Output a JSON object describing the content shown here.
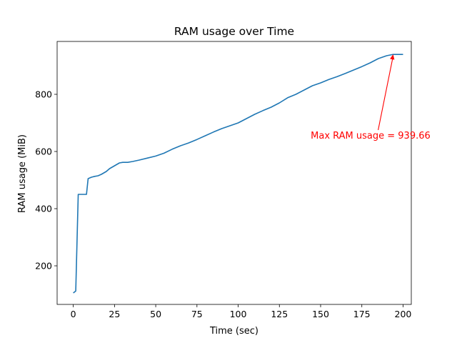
{
  "chart_data": {
    "type": "line",
    "title": "RAM usage over Time",
    "xlabel": "Time (sec)",
    "ylabel": "RAM usage (MiB)",
    "xlim": [
      -9.8,
      205
    ],
    "ylim": [
      65,
      985
    ],
    "xticks": [
      0,
      25,
      50,
      75,
      100,
      125,
      150,
      175,
      200
    ],
    "yticks": [
      200,
      400,
      600,
      800
    ],
    "grid": false,
    "series": [
      {
        "color": "#1f77b4",
        "x": [
          0,
          1.5,
          3,
          5,
          7,
          8,
          9,
          11,
          13,
          15,
          17,
          20,
          22,
          25,
          28,
          30,
          33,
          36,
          40,
          45,
          50,
          55,
          60,
          65,
          70,
          75,
          80,
          85,
          90,
          95,
          100,
          105,
          110,
          115,
          120,
          125,
          130,
          135,
          140,
          145,
          150,
          155,
          160,
          165,
          170,
          175,
          180,
          185,
          190,
          194,
          197,
          200
        ],
        "y": [
          105,
          112,
          450,
          450,
          450,
          450,
          505,
          510,
          513,
          515,
          520,
          530,
          540,
          550,
          560,
          562,
          562,
          565,
          570,
          577,
          584,
          594,
          608,
          620,
          630,
          642,
          655,
          668,
          680,
          690,
          700,
          715,
          730,
          743,
          755,
          770,
          788,
          800,
          815,
          830,
          840,
          852,
          862,
          873,
          885,
          897,
          910,
          925,
          935,
          939.66,
          939.66,
          939.66
        ]
      }
    ],
    "annotations": [
      {
        "text": "Max RAM usage = 939.66",
        "color": "#ff0000",
        "point": [
          194,
          939.66
        ],
        "text_pos": [
          144,
          645
        ]
      }
    ]
  }
}
